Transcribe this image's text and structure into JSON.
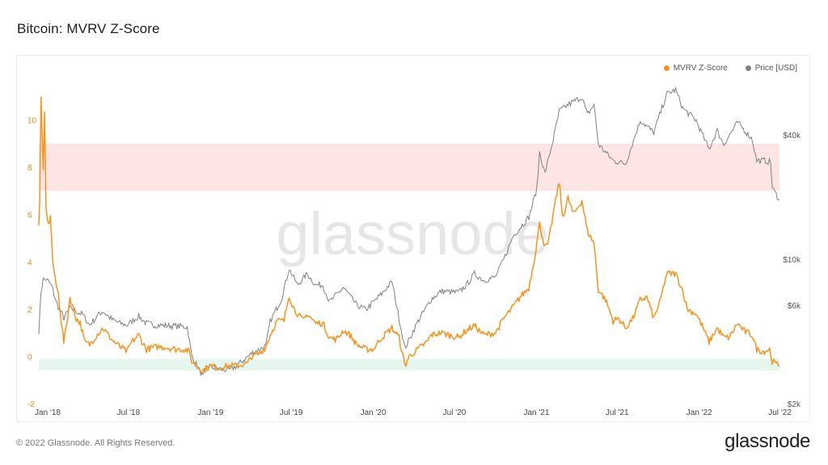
{
  "page": {
    "title": "Bitcoin: MVRV Z-Score",
    "watermark": "glassnode",
    "footer_copyright": "© 2022 Glassnode. All Rights Reserved.",
    "footer_logo": "glassnode"
  },
  "colors": {
    "zscore": "#f7931a",
    "price": "#808080",
    "red_band": "#fde5e5",
    "green_band": "#e5f6ee",
    "left_axis_text": "#e5891b",
    "right_axis_text": "#555555",
    "watermark": "#e6e6e6"
  },
  "chart_data": {
    "type": "line",
    "title": "Bitcoin: MVRV Z-Score",
    "legend_position": "top-right",
    "grid": false,
    "x_range": [
      "2017-12-12",
      "2022-06-30"
    ],
    "x_ticks": [
      {
        "date": "2018-01-01",
        "label": "Jan '18"
      },
      {
        "date": "2018-07-01",
        "label": "Jul '18"
      },
      {
        "date": "2019-01-01",
        "label": "Jan '19"
      },
      {
        "date": "2019-07-01",
        "label": "Jul '19"
      },
      {
        "date": "2020-01-01",
        "label": "Jan '20"
      },
      {
        "date": "2020-07-01",
        "label": "Jul '20"
      },
      {
        "date": "2021-01-01",
        "label": "Jan '21"
      },
      {
        "date": "2021-07-01",
        "label": "Jul '21"
      },
      {
        "date": "2022-01-01",
        "label": "Jan '22"
      },
      {
        "date": "2022-07-01",
        "label": "Jul '22"
      }
    ],
    "y_left": {
      "range": [
        -2,
        12
      ],
      "ticks": [
        -2,
        0,
        2,
        4,
        6,
        8,
        10
      ]
    },
    "y_right": {
      "scale": "log",
      "range": [
        2000,
        80000
      ],
      "ticks": [
        {
          "value": 2000,
          "label": "$2k"
        },
        {
          "value": 6000,
          "label": "$6k"
        },
        {
          "value": 10000,
          "label": "$10k"
        },
        {
          "value": 40000,
          "label": "$40k"
        }
      ]
    },
    "bands": [
      {
        "name": "overvalued",
        "from": 7,
        "to": 9
      },
      {
        "name": "undervalued",
        "from": -0.6,
        "to": -0.1
      }
    ],
    "series": [
      {
        "name": "MVRV Z-Score",
        "axis": "left",
        "points": [
          [
            "2017-12-12",
            5.5
          ],
          [
            "2017-12-14",
            6.6
          ],
          [
            "2017-12-17",
            11.0
          ],
          [
            "2017-12-19",
            9.5
          ],
          [
            "2017-12-22",
            8.0
          ],
          [
            "2017-12-25",
            10.2
          ],
          [
            "2017-12-28",
            6.3
          ],
          [
            "2018-01-03",
            5.5
          ],
          [
            "2018-01-07",
            6.0
          ],
          [
            "2018-01-12",
            4.1
          ],
          [
            "2018-01-17",
            3.3
          ],
          [
            "2018-01-25",
            2.6
          ],
          [
            "2018-02-06",
            0.6
          ],
          [
            "2018-02-12",
            1.3
          ],
          [
            "2018-02-20",
            2.5
          ],
          [
            "2018-03-01",
            1.9
          ],
          [
            "2018-03-06",
            1.6
          ],
          [
            "2018-03-15",
            1.4
          ],
          [
            "2018-03-25",
            0.6
          ],
          [
            "2018-04-05",
            0.5
          ],
          [
            "2018-04-25",
            1.0
          ],
          [
            "2018-05-05",
            1.2
          ],
          [
            "2018-05-25",
            0.7
          ],
          [
            "2018-06-12",
            0.4
          ],
          [
            "2018-06-28",
            0.2
          ],
          [
            "2018-07-08",
            0.6
          ],
          [
            "2018-07-24",
            0.9
          ],
          [
            "2018-08-10",
            0.3
          ],
          [
            "2018-09-01",
            0.4
          ],
          [
            "2018-09-20",
            0.4
          ],
          [
            "2018-10-15",
            0.3
          ],
          [
            "2018-11-05",
            0.3
          ],
          [
            "2018-11-14",
            0.2
          ],
          [
            "2018-11-20",
            -0.2
          ],
          [
            "2018-12-01",
            -0.4
          ],
          [
            "2018-12-15",
            -0.6
          ],
          [
            "2019-01-01",
            -0.4
          ],
          [
            "2019-01-20",
            -0.5
          ],
          [
            "2019-02-10",
            -0.4
          ],
          [
            "2019-03-01",
            -0.4
          ],
          [
            "2019-03-25",
            -0.3
          ],
          [
            "2019-04-03",
            0.0
          ],
          [
            "2019-04-20",
            0.1
          ],
          [
            "2019-05-05",
            0.4
          ],
          [
            "2019-05-15",
            0.9
          ],
          [
            "2019-05-30",
            1.5
          ],
          [
            "2019-06-15",
            1.5
          ],
          [
            "2019-06-26",
            2.6
          ],
          [
            "2019-07-05",
            2.1
          ],
          [
            "2019-07-15",
            1.8
          ],
          [
            "2019-07-28",
            1.5
          ],
          [
            "2019-08-06",
            1.8
          ],
          [
            "2019-08-25",
            1.4
          ],
          [
            "2019-09-10",
            1.4
          ],
          [
            "2019-09-25",
            0.8
          ],
          [
            "2019-10-10",
            0.7
          ],
          [
            "2019-10-26",
            1.1
          ],
          [
            "2019-11-10",
            0.9
          ],
          [
            "2019-11-25",
            0.5
          ],
          [
            "2019-12-15",
            0.3
          ],
          [
            "2020-01-01",
            0.3
          ],
          [
            "2020-01-20",
            0.8
          ],
          [
            "2020-02-12",
            1.2
          ],
          [
            "2020-02-28",
            0.8
          ],
          [
            "2020-03-12",
            -0.4
          ],
          [
            "2020-03-22",
            0.0
          ],
          [
            "2020-04-10",
            0.3
          ],
          [
            "2020-04-30",
            0.6
          ],
          [
            "2020-05-10",
            0.9
          ],
          [
            "2020-06-01",
            1.0
          ],
          [
            "2020-06-20",
            0.9
          ],
          [
            "2020-07-10",
            0.8
          ],
          [
            "2020-07-28",
            1.1
          ],
          [
            "2020-08-15",
            1.3
          ],
          [
            "2020-09-05",
            0.9
          ],
          [
            "2020-10-01",
            1.0
          ],
          [
            "2020-10-20",
            1.6
          ],
          [
            "2020-11-10",
            2.1
          ],
          [
            "2020-11-25",
            2.5
          ],
          [
            "2020-12-15",
            2.9
          ],
          [
            "2020-12-28",
            4.2
          ],
          [
            "2021-01-08",
            5.6
          ],
          [
            "2021-01-20",
            4.6
          ],
          [
            "2021-01-28",
            4.8
          ],
          [
            "2021-02-10",
            6.3
          ],
          [
            "2021-02-21",
            7.4
          ],
          [
            "2021-02-28",
            6.0
          ],
          [
            "2021-03-05",
            6.1
          ],
          [
            "2021-03-13",
            6.7
          ],
          [
            "2021-03-25",
            6.0
          ],
          [
            "2021-04-13",
            6.6
          ],
          [
            "2021-04-25",
            5.3
          ],
          [
            "2021-05-10",
            4.8
          ],
          [
            "2021-05-20",
            2.8
          ],
          [
            "2021-06-05",
            2.4
          ],
          [
            "2021-06-22",
            1.5
          ],
          [
            "2021-07-05",
            1.6
          ],
          [
            "2021-07-20",
            1.2
          ],
          [
            "2021-08-05",
            1.6
          ],
          [
            "2021-08-22",
            2.4
          ],
          [
            "2021-09-06",
            2.5
          ],
          [
            "2021-09-21",
            1.6
          ],
          [
            "2021-10-05",
            2.3
          ],
          [
            "2021-10-20",
            3.5
          ],
          [
            "2021-11-09",
            3.5
          ],
          [
            "2021-11-25",
            2.8
          ],
          [
            "2021-12-05",
            2.0
          ],
          [
            "2021-12-25",
            1.8
          ],
          [
            "2022-01-10",
            1.2
          ],
          [
            "2022-01-23",
            0.6
          ],
          [
            "2022-02-10",
            1.2
          ],
          [
            "2022-02-25",
            0.8
          ],
          [
            "2022-03-10",
            0.8
          ],
          [
            "2022-03-28",
            1.4
          ],
          [
            "2022-04-10",
            1.1
          ],
          [
            "2022-04-30",
            0.9
          ],
          [
            "2022-05-10",
            0.3
          ],
          [
            "2022-05-25",
            0.2
          ],
          [
            "2022-06-08",
            0.3
          ],
          [
            "2022-06-14",
            -0.2
          ],
          [
            "2022-06-20",
            -0.3
          ],
          [
            "2022-06-30",
            -0.4
          ]
        ]
      },
      {
        "name": "Price [USD]",
        "axis": "right",
        "points": [
          [
            "2017-12-12",
            4500
          ],
          [
            "2017-12-17",
            7000
          ],
          [
            "2017-12-22",
            8000
          ],
          [
            "2017-12-28",
            8000
          ],
          [
            "2018-01-03",
            7800
          ],
          [
            "2018-01-10",
            7400
          ],
          [
            "2018-01-20",
            6200
          ],
          [
            "2018-02-06",
            5200
          ],
          [
            "2018-02-20",
            5800
          ],
          [
            "2018-03-05",
            5600
          ],
          [
            "2018-03-20",
            5400
          ],
          [
            "2018-04-05",
            4800
          ],
          [
            "2018-04-25",
            5400
          ],
          [
            "2018-05-05",
            5600
          ],
          [
            "2018-05-25",
            5100
          ],
          [
            "2018-06-12",
            4900
          ],
          [
            "2018-06-28",
            4800
          ],
          [
            "2018-07-24",
            5300
          ],
          [
            "2018-08-10",
            4900
          ],
          [
            "2018-09-01",
            4800
          ],
          [
            "2018-10-15",
            4750
          ],
          [
            "2018-11-10",
            4700
          ],
          [
            "2018-11-20",
            3400
          ],
          [
            "2018-12-15",
            2700
          ],
          [
            "2018-12-25",
            3050
          ],
          [
            "2019-01-20",
            2950
          ],
          [
            "2019-02-10",
            2900
          ],
          [
            "2019-03-01",
            3050
          ],
          [
            "2019-04-03",
            3500
          ],
          [
            "2019-05-05",
            3800
          ],
          [
            "2019-05-15",
            5000
          ],
          [
            "2019-06-10",
            6500
          ],
          [
            "2019-06-26",
            9000
          ],
          [
            "2019-07-15",
            7500
          ],
          [
            "2019-08-06",
            8500
          ],
          [
            "2019-08-25",
            7500
          ],
          [
            "2019-09-10",
            7500
          ],
          [
            "2019-09-25",
            6200
          ],
          [
            "2019-10-26",
            7300
          ],
          [
            "2019-11-25",
            6000
          ],
          [
            "2019-12-15",
            5700
          ],
          [
            "2020-01-20",
            6800
          ],
          [
            "2020-02-12",
            7800
          ],
          [
            "2020-03-12",
            3700
          ],
          [
            "2020-04-10",
            5000
          ],
          [
            "2020-05-10",
            6400
          ],
          [
            "2020-06-01",
            7000
          ],
          [
            "2020-07-10",
            6900
          ],
          [
            "2020-07-28",
            7500
          ],
          [
            "2020-08-15",
            8500
          ],
          [
            "2020-09-05",
            7900
          ],
          [
            "2020-10-01",
            8200
          ],
          [
            "2020-10-20",
            10000
          ],
          [
            "2020-11-10",
            13000
          ],
          [
            "2020-12-15",
            16000
          ],
          [
            "2021-01-02",
            22000
          ],
          [
            "2021-01-08",
            33000
          ],
          [
            "2021-01-20",
            26000
          ],
          [
            "2021-02-10",
            40000
          ],
          [
            "2021-02-21",
            52000
          ],
          [
            "2021-03-13",
            56000
          ],
          [
            "2021-04-13",
            61000
          ],
          [
            "2021-04-25",
            50000
          ],
          [
            "2021-05-10",
            56000
          ],
          [
            "2021-05-20",
            36000
          ],
          [
            "2021-06-22",
            30000
          ],
          [
            "2021-07-20",
            29000
          ],
          [
            "2021-08-22",
            47000
          ],
          [
            "2021-09-21",
            41000
          ],
          [
            "2021-10-20",
            63000
          ],
          [
            "2021-11-09",
            66000
          ],
          [
            "2021-11-25",
            54000
          ],
          [
            "2021-12-25",
            47000
          ],
          [
            "2022-01-23",
            34000
          ],
          [
            "2022-02-10",
            42000
          ],
          [
            "2022-02-25",
            36000
          ],
          [
            "2022-03-28",
            46000
          ],
          [
            "2022-04-30",
            38000
          ],
          [
            "2022-05-10",
            30000
          ],
          [
            "2022-05-30",
            30000
          ],
          [
            "2022-06-10",
            29500
          ],
          [
            "2022-06-14",
            22000
          ],
          [
            "2022-06-20",
            21000
          ],
          [
            "2022-06-30",
            19500
          ]
        ]
      }
    ]
  }
}
